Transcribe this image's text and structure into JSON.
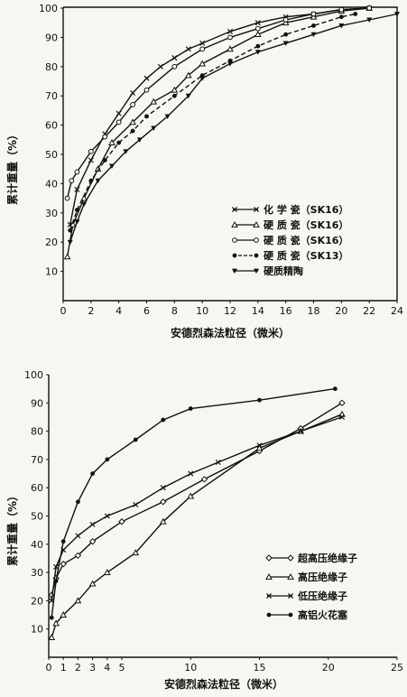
{
  "chart_data": [
    {
      "type": "line",
      "title": "",
      "xlabel": "安德烈森法粒径（微米）",
      "ylabel": "累计重量（%）",
      "xlim": [
        0,
        24
      ],
      "ylim": [
        0,
        100
      ],
      "x_ticks": [
        0,
        2,
        4,
        6,
        8,
        10,
        12,
        14,
        16,
        18,
        20,
        22,
        24
      ],
      "y_ticks": [
        10,
        20,
        30,
        40,
        50,
        60,
        70,
        80,
        90,
        100
      ],
      "legend_position": "lower-right",
      "series": [
        {
          "name": "化 学 瓷（SK16）",
          "marker": "x",
          "dashed": false,
          "x": [
            0.5,
            1,
            2,
            3,
            4,
            5,
            6,
            7,
            8,
            9,
            10,
            12,
            14,
            16,
            18,
            20,
            22
          ],
          "y": [
            26,
            38,
            48,
            57,
            64,
            71,
            76,
            80,
            83,
            86,
            88,
            92,
            95,
            97,
            98,
            99.5,
            100
          ]
        },
        {
          "name": "硬 质 瓷（SK16）",
          "marker": "triangle-open",
          "dashed": false,
          "x": [
            0.3,
            0.7,
            1.5,
            2.5,
            3.5,
            5,
            6.5,
            8,
            9,
            10,
            12,
            14,
            16,
            18,
            20,
            22
          ],
          "y": [
            15,
            26,
            35,
            45,
            54,
            61,
            68,
            72,
            77,
            81,
            86,
            91,
            95,
            97,
            99,
            100
          ]
        },
        {
          "name": "硬 质 瓷（SK16）",
          "marker": "circle-open",
          "dashed": false,
          "x": [
            0.3,
            0.6,
            1,
            2,
            3,
            4,
            5,
            6,
            8,
            10,
            12,
            14,
            16,
            18,
            20,
            22
          ],
          "y": [
            35,
            41,
            44,
            51,
            56,
            61,
            67,
            72,
            80,
            86,
            90,
            93,
            96,
            98,
            99.5,
            100
          ]
        },
        {
          "name": "硬 质 瓷（SK13）",
          "marker": "dot",
          "dashed": true,
          "x": [
            0.5,
            1,
            2,
            3,
            4,
            5,
            6,
            8,
            10,
            12,
            14,
            16,
            18,
            20,
            21
          ],
          "y": [
            24,
            31,
            41,
            48,
            54,
            58,
            63,
            70,
            77,
            82,
            87,
            91,
            94,
            97,
            98
          ]
        },
        {
          "name": "硬质精陶",
          "marker": "triangle-filled",
          "dashed": false,
          "x": [
            0.5,
            1,
            1.5,
            2.5,
            3.5,
            4.5,
            5.5,
            6.5,
            7.5,
            9,
            10,
            12,
            14,
            16,
            18,
            20,
            22,
            24
          ],
          "y": [
            20,
            27,
            33,
            41,
            46,
            51,
            55,
            59,
            63,
            70,
            76,
            81,
            85,
            88,
            91,
            94,
            96,
            98
          ]
        }
      ]
    },
    {
      "type": "line",
      "title": "",
      "xlabel": "安德烈森法粒径（微米）",
      "ylabel": "累计重量（%）",
      "xlim": [
        0,
        25
      ],
      "ylim": [
        0,
        100
      ],
      "x_ticks": [
        0,
        1,
        2,
        3,
        4,
        5,
        10,
        15,
        20,
        25
      ],
      "y_ticks": [
        10,
        20,
        30,
        40,
        50,
        60,
        70,
        80,
        90,
        100
      ],
      "legend_position": "lower-right",
      "series": [
        {
          "name": "超高压绝缘子",
          "marker": "diamond-open",
          "x": [
            0.2,
            0.5,
            1,
            2,
            3,
            5,
            8,
            11,
            15,
            18,
            21
          ],
          "y": [
            22,
            28,
            33,
            36,
            41,
            48,
            55,
            63,
            73,
            81,
            90
          ]
        },
        {
          "name": "高压绝缘子",
          "marker": "triangle-open",
          "x": [
            0.2,
            0.5,
            1,
            2,
            3,
            4,
            6,
            8,
            10,
            15,
            18,
            21
          ],
          "y": [
            7,
            12,
            15,
            20,
            26,
            30,
            37,
            48,
            57,
            74,
            80,
            86
          ]
        },
        {
          "name": "低压绝缘子",
          "marker": "x",
          "x": [
            0.2,
            0.5,
            1,
            2,
            3,
            4,
            6,
            8,
            10,
            12,
            15,
            18,
            21
          ],
          "y": [
            20,
            32,
            38,
            43,
            47,
            50,
            54,
            60,
            65,
            69,
            75,
            80,
            85
          ]
        },
        {
          "name": "高铝火花塞",
          "marker": "dot",
          "x": [
            0.2,
            0.5,
            1,
            2,
            3,
            4,
            6,
            8,
            10,
            15,
            20.5
          ],
          "y": [
            14,
            27,
            41,
            55,
            65,
            70,
            77,
            84,
            88,
            91,
            95
          ]
        }
      ]
    }
  ]
}
